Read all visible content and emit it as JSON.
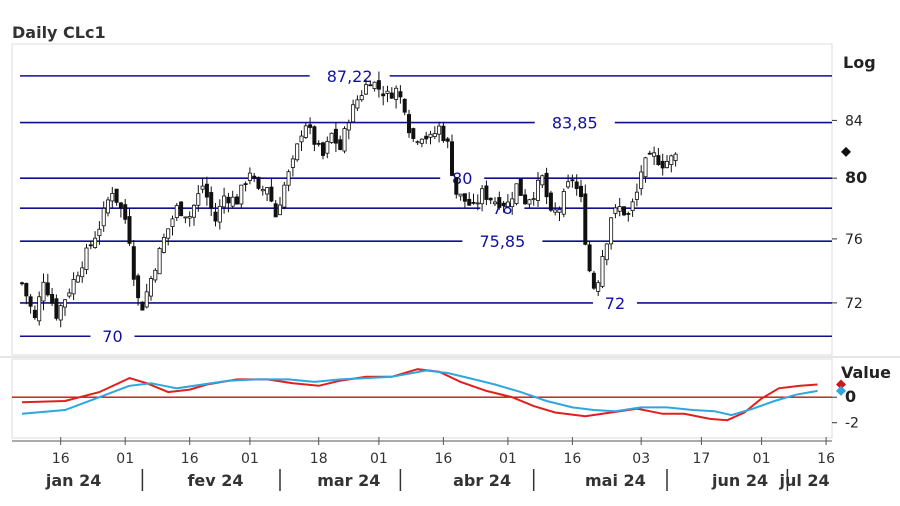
{
  "title": "Daily CLc1",
  "main_scale_label": "Log",
  "indicator_label": "Value",
  "chart_data": [
    {
      "type": "candlestick",
      "title": "Daily CLc1",
      "yscale": "log",
      "ylim": [
        68.9,
        89.6
      ],
      "y_ticks": [
        {
          "value": 84,
          "label": "84",
          "bold": false
        },
        {
          "value": 80,
          "label": "80",
          "bold": true
        },
        {
          "value": 76,
          "label": "76",
          "bold": false
        },
        {
          "value": 72,
          "label": "72",
          "bold": false
        }
      ],
      "levels": [
        {
          "value": 87.22,
          "label": "87,22",
          "label_pos": 0.41
        },
        {
          "value": 83.85,
          "label": "83,85",
          "label_pos": 0.69
        },
        {
          "value": 80,
          "label": "80",
          "label_pos": 0.55
        },
        {
          "value": 78,
          "label": "78",
          "label_pos": 0.6
        },
        {
          "value": 75.85,
          "label": "75,85",
          "label_pos": 0.6
        },
        {
          "value": 72,
          "label": "72",
          "label_pos": 0.74
        },
        {
          "value": 70,
          "label": "70",
          "label_pos": 0.115
        }
      ],
      "current_marker": 81.8,
      "close_path": [
        [
          0,
          73.2
        ],
        [
          3,
          71.0
        ],
        [
          5,
          73.5
        ],
        [
          8,
          71.3
        ],
        [
          11,
          72.8
        ],
        [
          14,
          74.5
        ],
        [
          18,
          76.8
        ],
        [
          20,
          78.5
        ],
        [
          21,
          79.2
        ],
        [
          24,
          77.3
        ],
        [
          25,
          76.0
        ],
        [
          26,
          73.8
        ],
        [
          27,
          72.2
        ],
        [
          28,
          71.8
        ],
        [
          30,
          73.5
        ],
        [
          33,
          76.0
        ],
        [
          36,
          78.0
        ],
        [
          39,
          77.5
        ],
        [
          42,
          79.5
        ],
        [
          45,
          77.2
        ],
        [
          47,
          78.8
        ],
        [
          50,
          78.5
        ],
        [
          53,
          80.5
        ],
        [
          55,
          79.0
        ],
        [
          57,
          79.5
        ],
        [
          59,
          77.5
        ],
        [
          61,
          79.5
        ],
        [
          63,
          81.0
        ],
        [
          65,
          83.2
        ],
        [
          66,
          83.8
        ],
        [
          68,
          82.5
        ],
        [
          70,
          81.5
        ],
        [
          72,
          83.0
        ],
        [
          74,
          82.0
        ],
        [
          76,
          84.2
        ],
        [
          78,
          85.5
        ],
        [
          80,
          86.5
        ],
        [
          81,
          87.0
        ],
        [
          83,
          86.3
        ],
        [
          85,
          85.8
        ],
        [
          87,
          86.2
        ],
        [
          89,
          85.0
        ],
        [
          90,
          83.5
        ],
        [
          91,
          82.7
        ],
        [
          93,
          83.0
        ],
        [
          95,
          82.7
        ],
        [
          97,
          83.5
        ],
        [
          99,
          82.3
        ],
        [
          100,
          80.5
        ],
        [
          101,
          79.0
        ],
        [
          103,
          78.5
        ],
        [
          105,
          78.0
        ],
        [
          107,
          79.0
        ],
        [
          110,
          78.5
        ],
        [
          113,
          78.3
        ],
        [
          115,
          79.5
        ],
        [
          117,
          78.5
        ],
        [
          119,
          79.0
        ],
        [
          121,
          80.0
        ],
        [
          123,
          77.5
        ],
        [
          125,
          78.0
        ],
        [
          127,
          79.5
        ],
        [
          128,
          80.0
        ],
        [
          130,
          78.5
        ],
        [
          131,
          76.0
        ],
        [
          132,
          74.0
        ],
        [
          133,
          73.0
        ],
        [
          134,
          73.5
        ],
        [
          135,
          75.0
        ],
        [
          136,
          76.0
        ],
        [
          137,
          77.5
        ],
        [
          139,
          78.0
        ],
        [
          141,
          77.5
        ],
        [
          143,
          79.0
        ],
        [
          144,
          80.5
        ],
        [
          145,
          81.0
        ],
        [
          147,
          81.5
        ],
        [
          149,
          81.0
        ],
        [
          152,
          81.5
        ]
      ],
      "x_ticks": [
        {
          "day": 9,
          "label": "16"
        },
        {
          "day": 24,
          "label": "01"
        },
        {
          "day": 39,
          "label": "16"
        },
        {
          "day": 53,
          "label": "01"
        },
        {
          "day": 69,
          "label": "18"
        },
        {
          "day": 83,
          "label": "01"
        },
        {
          "day": 98,
          "label": "16"
        },
        {
          "day": 113,
          "label": "01"
        },
        {
          "day": 128,
          "label": "16"
        },
        {
          "day": 144,
          "label": "03"
        },
        {
          "day": 158,
          "label": "17"
        },
        {
          "day": 172,
          "label": "01"
        },
        {
          "day": 187,
          "label": "16"
        }
      ],
      "months": [
        {
          "label": "jan 24",
          "day": 12
        },
        {
          "label": "fev 24",
          "day": 45
        },
        {
          "label": "mar 24",
          "day": 76
        },
        {
          "label": "abr 24",
          "day": 107
        },
        {
          "label": "mai 24",
          "day": 138
        },
        {
          "label": "jun 24",
          "day": 167
        },
        {
          "label": "jul 24",
          "day": 182
        }
      ],
      "month_separators": [
        28,
        60,
        88,
        119,
        150,
        178
      ]
    },
    {
      "type": "line",
      "ylabel": "Value",
      "ylim": [
        -3.2,
        3.0
      ],
      "y_ticks": [
        {
          "value": 0,
          "label": "0",
          "bold": true
        },
        {
          "value": -2,
          "label": "-2",
          "bold": false
        }
      ],
      "zero_line": 0,
      "series": [
        {
          "color": "#e0201e",
          "points": [
            [
              0,
              -0.4
            ],
            [
              10,
              -0.3
            ],
            [
              18,
              0.4
            ],
            [
              25,
              1.5
            ],
            [
              29,
              1.1
            ],
            [
              34,
              0.4
            ],
            [
              39,
              0.6
            ],
            [
              43,
              1.0
            ],
            [
              50,
              1.4
            ],
            [
              57,
              1.4
            ],
            [
              63,
              1.1
            ],
            [
              69,
              0.9
            ],
            [
              74,
              1.3
            ],
            [
              80,
              1.6
            ],
            [
              86,
              1.6
            ],
            [
              92,
              2.2
            ],
            [
              97,
              2.0
            ],
            [
              102,
              1.2
            ],
            [
              108,
              0.5
            ],
            [
              114,
              0.0
            ],
            [
              119,
              -0.7
            ],
            [
              124,
              -1.2
            ],
            [
              131,
              -1.5
            ],
            [
              137,
              -1.2
            ],
            [
              143,
              -0.9
            ],
            [
              149,
              -1.3
            ],
            [
              154,
              -1.3
            ],
            [
              160,
              -1.7
            ],
            [
              164,
              -1.8
            ],
            [
              168,
              -1.2
            ],
            [
              172,
              -0.1
            ],
            [
              176,
              0.7
            ],
            [
              181,
              0.9
            ],
            [
              185,
              1.0
            ]
          ]
        },
        {
          "color": "#2ea6e0",
          "points": [
            [
              0,
              -1.3
            ],
            [
              10,
              -1.0
            ],
            [
              18,
              0.0
            ],
            [
              25,
              0.9
            ],
            [
              30,
              1.1
            ],
            [
              36,
              0.7
            ],
            [
              42,
              1.0
            ],
            [
              48,
              1.3
            ],
            [
              55,
              1.4
            ],
            [
              62,
              1.4
            ],
            [
              68,
              1.2
            ],
            [
              74,
              1.4
            ],
            [
              80,
              1.5
            ],
            [
              86,
              1.6
            ],
            [
              94,
              2.1
            ],
            [
              99,
              1.9
            ],
            [
              104,
              1.5
            ],
            [
              110,
              1.0
            ],
            [
              116,
              0.4
            ],
            [
              122,
              -0.3
            ],
            [
              128,
              -0.8
            ],
            [
              133,
              -1.0
            ],
            [
              138,
              -1.1
            ],
            [
              144,
              -0.8
            ],
            [
              150,
              -0.8
            ],
            [
              156,
              -1.0
            ],
            [
              161,
              -1.1
            ],
            [
              165,
              -1.4
            ],
            [
              170,
              -0.9
            ],
            [
              175,
              -0.3
            ],
            [
              180,
              0.2
            ],
            [
              185,
              0.5
            ]
          ]
        }
      ],
      "markers": [
        {
          "value": 1.0,
          "color": "#d01818"
        },
        {
          "value": 0.5,
          "color": "#2ea6e0"
        }
      ]
    }
  ]
}
